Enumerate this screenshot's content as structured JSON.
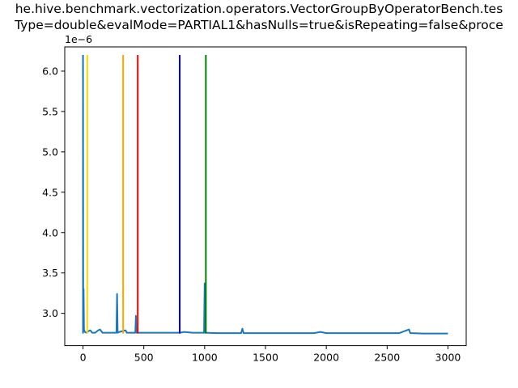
{
  "chart_data": {
    "type": "line",
    "title_lines": [
      "he.hive.benchmark.vectorization.operators.VectorGroupByOperatorBench.tes",
      "Type=double&evalMode=PARTIAL1&hasNulls=true&isRepeating=false&proce"
    ],
    "xlabel": "",
    "ylabel": "",
    "y_offset_label": "1e−6",
    "xlim": [
      -150,
      3150
    ],
    "ylim": [
      2.6e-06,
      6.3e-06
    ],
    "x_ticks": [
      0,
      500,
      1000,
      1500,
      2000,
      2500,
      3000
    ],
    "x_tick_labels": [
      "0",
      "500",
      "1000",
      "1500",
      "2000",
      "2500",
      "3000"
    ],
    "y_ticks": [
      3e-06,
      3.5e-06,
      4e-06,
      4.5e-06,
      5e-06,
      5.5e-06,
      6e-06
    ],
    "y_tick_labels": [
      "3.0",
      "3.5",
      "4.0",
      "4.5",
      "5.0",
      "5.5",
      "6.0"
    ],
    "grid": false,
    "series": [
      {
        "color": "#1f77b4",
        "baseline": 2.75e-06,
        "x_end": 3000,
        "points": [
          [
            0,
            6.2e-06
          ],
          [
            2,
            2.85e-06
          ],
          [
            5,
            3.3e-06
          ],
          [
            8,
            2.8e-06
          ],
          [
            15,
            2.77e-06
          ],
          [
            30,
            2.76e-06
          ],
          [
            45,
            2.78e-06
          ],
          [
            60,
            2.79e-06
          ],
          [
            75,
            2.76e-06
          ],
          [
            100,
            2.76e-06
          ],
          [
            125,
            2.79e-06
          ],
          [
            140,
            2.8e-06
          ],
          [
            160,
            2.76e-06
          ],
          [
            200,
            2.76e-06
          ],
          [
            240,
            2.76e-06
          ],
          [
            275,
            2.76e-06
          ],
          [
            280,
            3.24e-06
          ],
          [
            285,
            2.76e-06
          ],
          [
            300,
            2.77e-06
          ],
          [
            350,
            2.79e-06
          ],
          [
            360,
            2.76e-06
          ],
          [
            430,
            2.76e-06
          ],
          [
            435,
            2.97e-06
          ],
          [
            440,
            2.76e-06
          ],
          [
            500,
            2.76e-06
          ],
          [
            600,
            2.76e-06
          ],
          [
            700,
            2.76e-06
          ],
          [
            800,
            2.76e-06
          ],
          [
            830,
            2.77e-06
          ],
          [
            900,
            2.76e-06
          ],
          [
            995,
            2.76e-06
          ],
          [
            1000,
            3.37e-06
          ],
          [
            1005,
            2.76e-06
          ],
          [
            1100,
            2.755e-06
          ],
          [
            1200,
            2.755e-06
          ],
          [
            1300,
            2.755e-06
          ],
          [
            1310,
            2.81e-06
          ],
          [
            1320,
            2.755e-06
          ],
          [
            1500,
            2.755e-06
          ],
          [
            1700,
            2.755e-06
          ],
          [
            1900,
            2.755e-06
          ],
          [
            1950,
            2.77e-06
          ],
          [
            2000,
            2.755e-06
          ],
          [
            2200,
            2.755e-06
          ],
          [
            2400,
            2.755e-06
          ],
          [
            2600,
            2.755e-06
          ],
          [
            2680,
            2.8e-06
          ],
          [
            2690,
            2.755e-06
          ],
          [
            2800,
            2.75e-06
          ],
          [
            3000,
            2.75e-06
          ]
        ]
      }
    ],
    "vlines": [
      {
        "x": 0,
        "ymin": 2.75e-06,
        "ymax": 6.2e-06,
        "color": "#1f77b4"
      },
      {
        "x": 35,
        "ymin": 2.75e-06,
        "ymax": 6.2e-06,
        "color": "#ffd700"
      },
      {
        "x": 330,
        "ymin": 2.75e-06,
        "ymax": 6.2e-06,
        "color": "#ffa500"
      },
      {
        "x": 450,
        "ymin": 2.75e-06,
        "ymax": 6.2e-06,
        "color": "#ff0000"
      },
      {
        "x": 795,
        "ymin": 2.75e-06,
        "ymax": 6.2e-06,
        "color": "#0000cd"
      },
      {
        "x": 1010,
        "ymin": 2.75e-06,
        "ymax": 6.2e-06,
        "color": "#008000"
      }
    ]
  }
}
